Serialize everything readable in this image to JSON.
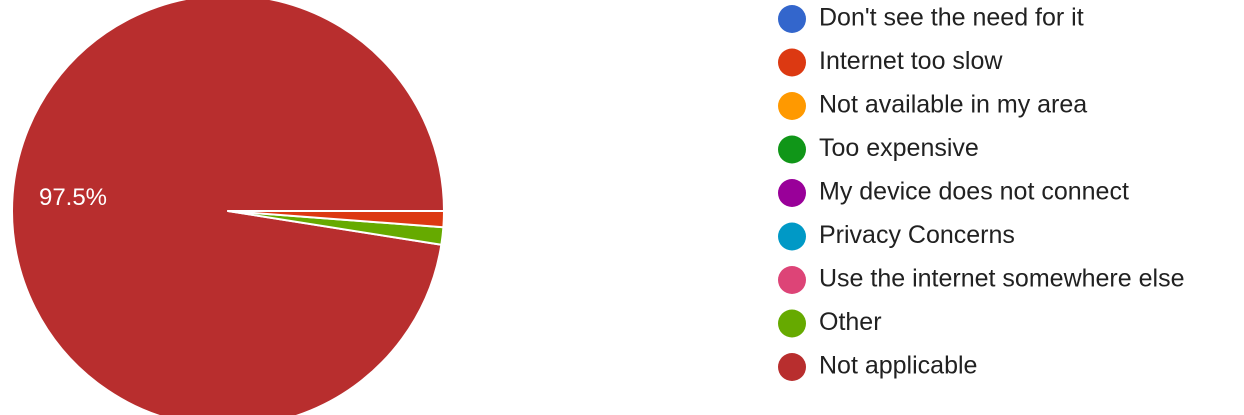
{
  "chart_data": {
    "type": "pie",
    "title": "",
    "legend_position": "right",
    "categories": [
      "Don't see the need for it",
      "Internet too slow",
      "Not available in my area",
      "Too expensive",
      "My device does not connect",
      "Privacy Concerns",
      "Use the internet somewhere else",
      "Other",
      "Not applicable"
    ],
    "values": [
      0,
      1.2,
      0,
      0,
      0,
      0,
      0,
      1.3,
      97.5
    ],
    "colors": [
      "#3366cc",
      "#dc3912",
      "#ff9900",
      "#109618",
      "#990099",
      "#0099c6",
      "#dd4477",
      "#66aa00",
      "#b82e2e"
    ],
    "data_labels": [
      "",
      "",
      "",
      "",
      "",
      "",
      "",
      "",
      "97.5%"
    ],
    "unit": "%"
  }
}
